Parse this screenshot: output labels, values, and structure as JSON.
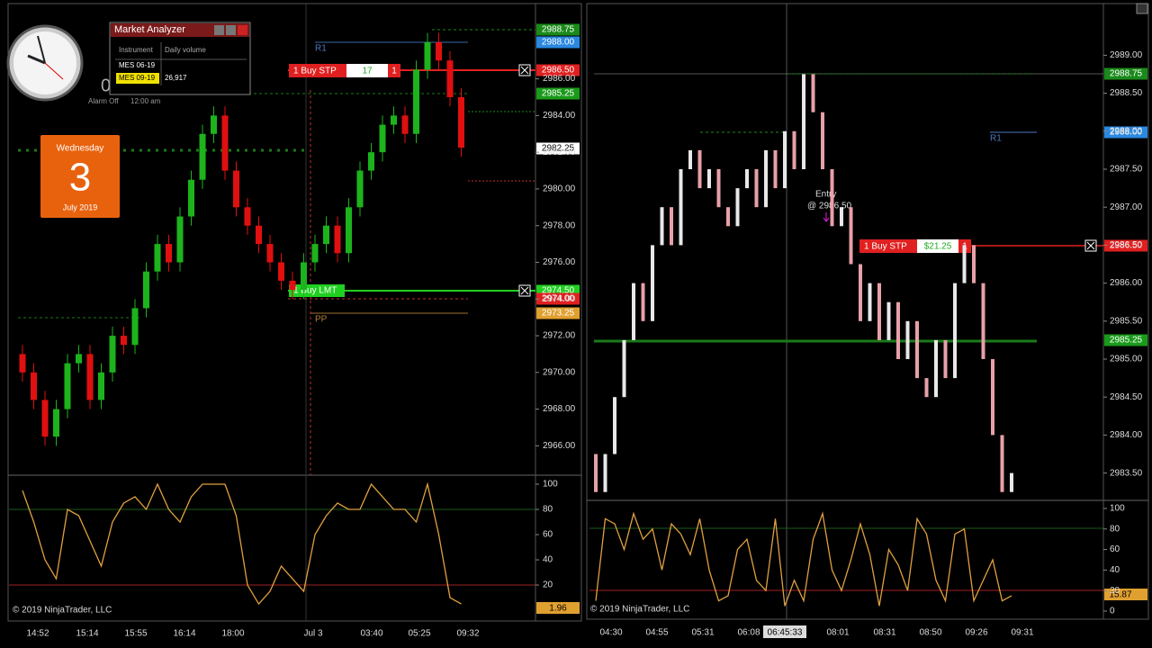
{
  "widgets": {
    "clock": {
      "digit": "0",
      "alarm": "Alarm Off",
      "time": "12:00 am"
    },
    "calendar": {
      "weekday": "Wednesday",
      "day": "3",
      "month": "July 2019"
    },
    "market_analyzer": {
      "title": "Market Analyzer",
      "columns": [
        "Instrument",
        "Daily volume"
      ],
      "rows": [
        [
          "MES 06-19",
          ""
        ],
        [
          "MES 09-19",
          "26,917"
        ]
      ]
    }
  },
  "left_chart": {
    "ylim": [
      2964.4,
      2990.1
    ],
    "price_ticks": [
      {
        "value": 2966,
        "label": "2966.00"
      },
      {
        "value": 2968,
        "label": "2968.00"
      },
      {
        "value": 2970,
        "label": "2970.00"
      },
      {
        "value": 2972,
        "label": "2972.00"
      },
      {
        "value": 2974,
        "label": "2974.00"
      },
      {
        "value": 2976,
        "label": "2976.00"
      },
      {
        "value": 2978,
        "label": "2978.00"
      },
      {
        "value": 2980,
        "label": "2980.00"
      },
      {
        "value": 2982,
        "label": "2982.00"
      },
      {
        "value": 2984,
        "label": "2984.00"
      },
      {
        "value": 2986,
        "label": "2986.00"
      }
    ],
    "candles": [
      [
        2971,
        2971.5,
        2969.5,
        2970
      ],
      [
        2970,
        2970.5,
        2968,
        2968.5
      ],
      [
        2968.5,
        2969,
        2966,
        2966.5
      ],
      [
        2966.5,
        2968.5,
        2966,
        2968
      ],
      [
        2968,
        2971,
        2967.5,
        2970.5
      ],
      [
        2970.5,
        2971.5,
        2970,
        2971
      ],
      [
        2971,
        2971.5,
        2968,
        2968.5
      ],
      [
        2968.5,
        2970.5,
        2968,
        2970
      ],
      [
        2970,
        2972.5,
        2969.5,
        2972
      ],
      [
        2972,
        2972.5,
        2971,
        2971.5
      ],
      [
        2971.5,
        2974,
        2971,
        2973.5
      ],
      [
        2973.5,
        2976,
        2973,
        2975.5
      ],
      [
        2975.5,
        2977.5,
        2975,
        2977
      ],
      [
        2977,
        2977.5,
        2975.5,
        2976
      ],
      [
        2976,
        2979,
        2975.5,
        2978.5
      ],
      [
        2978.5,
        2981,
        2978,
        2980.5
      ],
      [
        2980.5,
        2983.5,
        2980,
        2983
      ],
      [
        2983,
        2984.5,
        2982.5,
        2984
      ],
      [
        2984,
        2984.5,
        2980.5,
        2981
      ],
      [
        2981,
        2981.5,
        2978.5,
        2979
      ],
      [
        2979,
        2979.5,
        2977.5,
        2978
      ],
      [
        2978,
        2978.5,
        2976.5,
        2977
      ],
      [
        2977,
        2977.5,
        2975.5,
        2976
      ],
      [
        2976,
        2976.5,
        2974.5,
        2975
      ],
      [
        2975,
        2975.5,
        2974,
        2974.5
      ],
      [
        2974.5,
        2976.5,
        2974,
        2976
      ],
      [
        2976,
        2977.5,
        2975.5,
        2977
      ],
      [
        2977,
        2978.5,
        2976.5,
        2978
      ],
      [
        2978,
        2978.5,
        2976,
        2976.5
      ],
      [
        2976.5,
        2979.5,
        2976,
        2979
      ],
      [
        2979,
        2981.5,
        2978.5,
        2981
      ],
      [
        2981,
        2982.5,
        2980.5,
        2982
      ],
      [
        2982,
        2984,
        2981.5,
        2983.5
      ],
      [
        2983.5,
        2984.5,
        2983,
        2984
      ],
      [
        2984,
        2984.5,
        2982.5,
        2983
      ],
      [
        2983,
        2987,
        2982.5,
        2986.5
      ],
      [
        2986.5,
        2988.5,
        2986,
        2988
      ],
      [
        2988,
        2988.5,
        2986.5,
        2987
      ],
      [
        2987,
        2987.5,
        2984.5,
        2985
      ],
      [
        2985,
        2985.5,
        2981.75,
        2982.25
      ]
    ],
    "badges": [
      "2988.75",
      "2988.00",
      "2986.50",
      "2985.25",
      "2982.25",
      "2974.50",
      "2974.00",
      "2973.25"
    ],
    "order": {
      "label": "1 Buy STP",
      "pnl": "17",
      "qty": "1"
    },
    "limit_order": "1 Buy LMT",
    "r1": "R1",
    "pp": "PP",
    "osc_ylim": [
      -7.1,
      105.7
    ],
    "osc_ticks": [
      20,
      40,
      60,
      80,
      100
    ],
    "osc_badge": "1.96",
    "osc": [
      95,
      70,
      40,
      25,
      80,
      75,
      55,
      35,
      70,
      85,
      90,
      80,
      100,
      80,
      70,
      90,
      100,
      100,
      100,
      75,
      20,
      5,
      15,
      35,
      25,
      15,
      60,
      75,
      85,
      80,
      80,
      100,
      90,
      80,
      80,
      70,
      100,
      60,
      10,
      5
    ],
    "copyright": "© 2019 NinjaTrader, LLC",
    "times": [
      "14:52",
      "15:14",
      "15:55",
      "16:14",
      "18:00",
      "Jul 3",
      "03:40",
      "05:25",
      "09:32"
    ]
  },
  "right_chart": {
    "ylim": [
      2983.14,
      2989.68
    ],
    "price_ticks": [
      {
        "value": 2983.5,
        "label": "2983.50"
      },
      {
        "value": 2984,
        "label": "2984.00"
      },
      {
        "value": 2984.5,
        "label": "2984.50"
      },
      {
        "value": 2985,
        "label": "2985.00"
      },
      {
        "value": 2985.5,
        "label": "2985.50"
      },
      {
        "value": 2986,
        "label": "2986.00"
      },
      {
        "value": 2986.5,
        "label": "2986.50"
      },
      {
        "value": 2987,
        "label": "2987.00"
      },
      {
        "value": 2987.5,
        "label": "2987.50"
      },
      {
        "value": 2988,
        "label": "2988.00"
      },
      {
        "value": 2988.5,
        "label": "2988.50"
      },
      {
        "value": 2989,
        "label": "2989.00"
      }
    ],
    "bars": [
      [
        2983.75,
        2983.25
      ],
      [
        2983.25,
        2983.75
      ],
      [
        2983.75,
        2984.5
      ],
      [
        2984.5,
        2985.25
      ],
      [
        2985.25,
        2986
      ],
      [
        2986,
        2985.5
      ],
      [
        2985.5,
        2986.5
      ],
      [
        2986.5,
        2987
      ],
      [
        2987,
        2986.5
      ],
      [
        2986.5,
        2987.5
      ],
      [
        2987.5,
        2987.75
      ],
      [
        2987.75,
        2987.25
      ],
      [
        2987.25,
        2987.5
      ],
      [
        2987.5,
        2987
      ],
      [
        2987,
        2986.75
      ],
      [
        2986.75,
        2987.25
      ],
      [
        2987.25,
        2987.5
      ],
      [
        2987.5,
        2987
      ],
      [
        2987,
        2987.75
      ],
      [
        2987.75,
        2987.25
      ],
      [
        2987.25,
        2988
      ],
      [
        2988,
        2987.5
      ],
      [
        2987.5,
        2988.75
      ],
      [
        2988.75,
        2988.25
      ],
      [
        2988.25,
        2987.5
      ],
      [
        2987.5,
        2986.75
      ],
      [
        2986.75,
        2987
      ],
      [
        2987,
        2986.25
      ],
      [
        2986.25,
        2985.5
      ],
      [
        2985.5,
        2986
      ],
      [
        2986,
        2985.25
      ],
      [
        2985.25,
        2985.75
      ],
      [
        2985.75,
        2985
      ],
      [
        2985,
        2985.5
      ],
      [
        2985.5,
        2984.75
      ],
      [
        2984.75,
        2984.5
      ],
      [
        2984.5,
        2985.25
      ],
      [
        2985.25,
        2984.75
      ],
      [
        2984.75,
        2986
      ],
      [
        2986,
        2986.5
      ],
      [
        2986.5,
        2986
      ],
      [
        2986,
        2985
      ],
      [
        2985,
        2984
      ],
      [
        2984,
        2983.25
      ],
      [
        2983.25,
        2983.5
      ]
    ],
    "badges": [
      "2988.75",
      "2988.00",
      "2986.50",
      "2985.25"
    ],
    "entry": {
      "label": "Entry",
      "price": "@ 2986.50"
    },
    "order": {
      "label": "1 Buy STP",
      "pnl": "$21.25",
      "qty": "1"
    },
    "r1": "R1",
    "osc_ylim": [
      -7.9,
      106.1
    ],
    "osc_ticks": [
      0,
      20,
      40,
      60,
      80,
      100
    ],
    "osc_badge": "15.87",
    "osc": [
      10,
      90,
      85,
      60,
      95,
      70,
      80,
      40,
      85,
      75,
      55,
      90,
      40,
      10,
      15,
      60,
      70,
      30,
      20,
      90,
      5,
      30,
      10,
      70,
      95,
      40,
      20,
      50,
      85,
      55,
      5,
      60,
      45,
      20,
      90,
      75,
      30,
      10,
      75,
      80,
      10,
      30,
      50,
      10,
      15
    ],
    "copyright": "© 2019 NinjaTrader, LLC",
    "times": [
      "04:30",
      "04:55",
      "05:31",
      "06:08",
      "06:45:33",
      "08:01",
      "08:31",
      "08:50",
      "09:26",
      "09:31"
    ]
  }
}
